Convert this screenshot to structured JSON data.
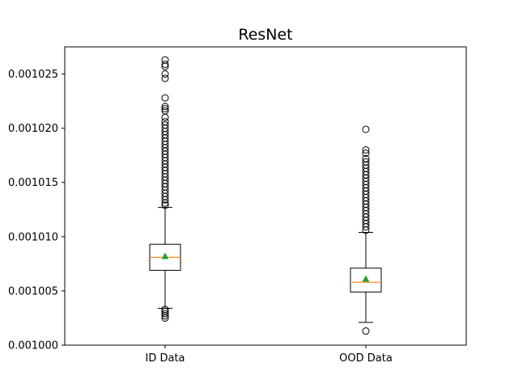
{
  "chart_data": {
    "type": "box",
    "title": "ResNet",
    "xlabel": "",
    "ylabel": "",
    "categories": [
      "ID Data",
      "OOD Data"
    ],
    "ylim": [
      0.001,
      0.0010275
    ],
    "yticks": [
      0.001,
      0.001005,
      0.00101,
      0.001015,
      0.00102,
      0.001025
    ],
    "ytick_labels": [
      "0.001000",
      "0.001005",
      "0.001010",
      "0.001015",
      "0.001020",
      "0.001025"
    ],
    "grid": false,
    "boxes": [
      {
        "label": "ID Data",
        "whisker_low": 0.0010034,
        "q1": 0.0010069,
        "median": 0.0010081,
        "q3": 0.0010093,
        "whisker_high": 0.0010127,
        "mean": 0.0010082,
        "outliers_high": [
          0.0010263,
          0.0010259,
          0.0010257,
          0.001025,
          0.0010246,
          0.0010228,
          0.001022,
          0.0010218,
          0.0010216,
          0.001021,
          0.0010206,
          0.0010203,
          0.00102,
          0.0010197,
          0.0010194,
          0.0010191,
          0.0010188,
          0.0010185,
          0.0010182,
          0.0010179,
          0.0010176,
          0.0010173,
          0.001017,
          0.0010167,
          0.0010164,
          0.0010161,
          0.0010158,
          0.0010155,
          0.0010152,
          0.0010149,
          0.0010146,
          0.0010143,
          0.001014,
          0.0010137,
          0.0010134,
          0.0010131,
          0.0010129
        ],
        "outliers_low": [
          0.0010033,
          0.0010031,
          0.0010029,
          0.0010027,
          0.0010025
        ]
      },
      {
        "label": "OOD Data",
        "whisker_low": 0.0010021,
        "q1": 0.0010049,
        "median": 0.0010058,
        "q3": 0.0010071,
        "whisker_high": 0.0010104,
        "mean": 0.0010061,
        "outliers_high": [
          0.0010199,
          0.001018,
          0.0010177,
          0.0010172,
          0.0010169,
          0.0010166,
          0.0010163,
          0.001016,
          0.0010157,
          0.0010154,
          0.0010151,
          0.0010148,
          0.0010145,
          0.0010142,
          0.0010139,
          0.0010136,
          0.0010133,
          0.001013,
          0.0010127,
          0.0010124,
          0.0010121,
          0.0010118,
          0.0010115,
          0.0010112,
          0.0010109,
          0.0010106
        ],
        "outliers_low": [
          0.0010013
        ]
      }
    ],
    "colors": {
      "box": "#000000",
      "median": "#ff7f0e",
      "mean": "#2ca02c",
      "outlier": "#000000"
    }
  }
}
